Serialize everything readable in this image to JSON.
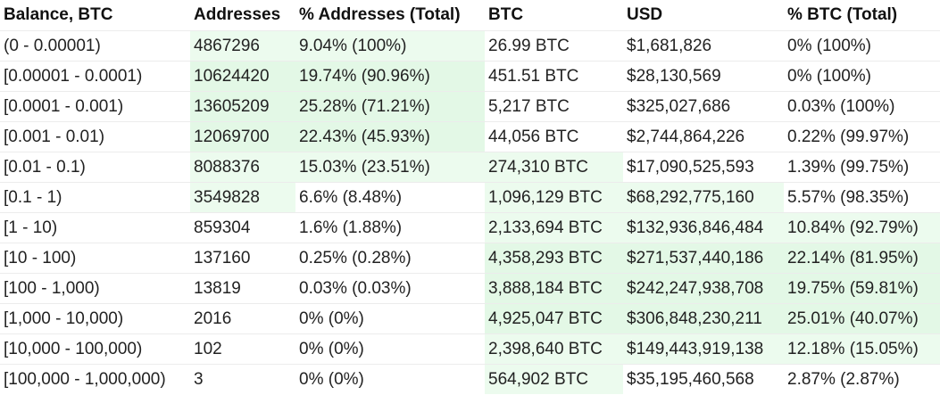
{
  "table": {
    "headers": [
      "Balance, BTC",
      "Addresses",
      "% Addresses (Total)",
      "BTC",
      "USD",
      "% BTC (Total)"
    ],
    "rows": [
      {
        "balance": "(0 - 0.00001)",
        "addresses": "4867296",
        "pct_addresses": "9.04% (100%)",
        "btc": "26.99 BTC",
        "usd": "$1,681,826",
        "pct_btc": "0% (100%)"
      },
      {
        "balance": "[0.00001 - 0.0001)",
        "addresses": "10624420",
        "pct_addresses": "19.74% (90.96%)",
        "btc": "451.51 BTC",
        "usd": "$28,130,569",
        "pct_btc": "0% (100%)"
      },
      {
        "balance": "[0.0001 - 0.001)",
        "addresses": "13605209",
        "pct_addresses": "25.28% (71.21%)",
        "btc": "5,217 BTC",
        "usd": "$325,027,686",
        "pct_btc": "0.03% (100%)"
      },
      {
        "balance": "[0.001 - 0.01)",
        "addresses": "12069700",
        "pct_addresses": "22.43% (45.93%)",
        "btc": "44,056 BTC",
        "usd": "$2,744,864,226",
        "pct_btc": "0.22% (99.97%)"
      },
      {
        "balance": "[0.01 - 0.1)",
        "addresses": "8088376",
        "pct_addresses": "15.03% (23.51%)",
        "btc": "274,310 BTC",
        "usd": "$17,090,525,593",
        "pct_btc": "1.39% (99.75%)"
      },
      {
        "balance": "[0.1 - 1)",
        "addresses": "3549828",
        "pct_addresses": "6.6% (8.48%)",
        "btc": "1,096,129 BTC",
        "usd": "$68,292,775,160",
        "pct_btc": "5.57% (98.35%)"
      },
      {
        "balance": "[1 - 10)",
        "addresses": "859304",
        "pct_addresses": "1.6% (1.88%)",
        "btc": "2,133,694 BTC",
        "usd": "$132,936,846,484",
        "pct_btc": "10.84% (92.79%)"
      },
      {
        "balance": "[10 - 100)",
        "addresses": "137160",
        "pct_addresses": "0.25% (0.28%)",
        "btc": "4,358,293 BTC",
        "usd": "$271,537,440,186",
        "pct_btc": "22.14% (81.95%)"
      },
      {
        "balance": "[100 - 1,000)",
        "addresses": "13819",
        "pct_addresses": "0.03% (0.03%)",
        "btc": "3,888,184 BTC",
        "usd": "$242,247,938,708",
        "pct_btc": "19.75% (59.81%)"
      },
      {
        "balance": "[1,000 - 10,000)",
        "addresses": "2016",
        "pct_addresses": "0% (0%)",
        "btc": "4,925,047 BTC",
        "usd": "$306,848,230,211",
        "pct_btc": "25.01% (40.07%)"
      },
      {
        "balance": "[10,000 - 100,000)",
        "addresses": "102",
        "pct_addresses": "0% (0%)",
        "btc": "2,398,640 BTC",
        "usd": "$149,443,919,138",
        "pct_btc": "12.18% (15.05%)"
      },
      {
        "balance": "[100,000 - 1,000,000)",
        "addresses": "3",
        "pct_addresses": "0% (0%)",
        "btc": "564,902 BTC",
        "usd": "$35,195,460,568",
        "pct_btc": "2.87% (2.87%)"
      }
    ]
  },
  "colors": {
    "highlight": "#ecfbee",
    "highlight_strong": "#e3f8e6",
    "text": "#222222",
    "row_border": "#ececec"
  }
}
